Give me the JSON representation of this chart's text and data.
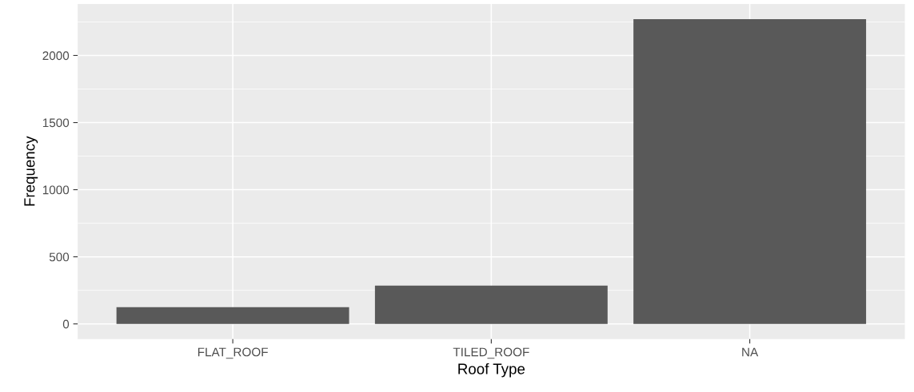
{
  "chart_data": {
    "type": "bar",
    "xlabel": "Roof Type",
    "ylabel": "Frequency",
    "categories": [
      "FLAT_ROOF",
      "TILED_ROOF",
      "NA"
    ],
    "values": [
      125,
      285,
      2270
    ],
    "color": "#595959",
    "ylim": [
      -113,
      2384
    ],
    "yticks": [
      0,
      {
        "value": 250,
        "label": null
      },
      500,
      {
        "value": 750,
        "label": null
      },
      1000,
      {
        "value": 1250,
        "label": null
      },
      1500,
      {
        "value": 1750,
        "label": null
      },
      2000,
      {
        "value": 2250,
        "label": null
      }
    ],
    "grid": true
  }
}
